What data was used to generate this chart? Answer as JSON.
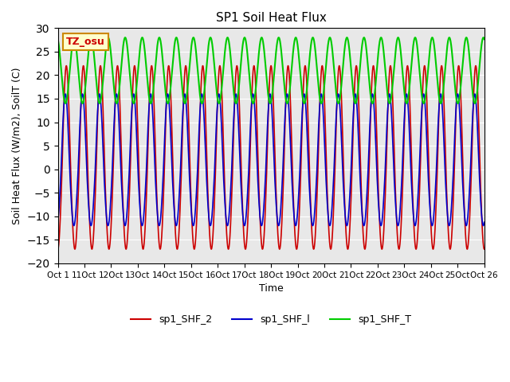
{
  "title": "SP1 Soil Heat Flux",
  "ylabel": "Soil Heat Flux (W/m2), SoilT (C)",
  "xlabel": "Time",
  "ylim": [
    -20,
    30
  ],
  "yticks": [
    -20,
    -15,
    -10,
    -5,
    0,
    5,
    10,
    15,
    20,
    25,
    30
  ],
  "xtick_labels": [
    "Oct 1",
    "11Oct",
    "12Oct",
    "13Oct",
    "14Oct",
    "15Oct",
    "16Oct",
    "17Oct",
    "18Oct",
    "19Oct",
    "20Oct",
    "21Oct",
    "22Oct",
    "23Oct",
    "24Oct",
    "25Oct",
    "Oct 26"
  ],
  "annotation_text": "TZ_osu",
  "annotation_bg": "#ffffcc",
  "annotation_border": "#cc8800",
  "bg_color": "#e8e8e8",
  "color_shf2": "#cc0000",
  "color_shf1": "#0000cc",
  "color_shfT": "#00cc00",
  "legend_labels": [
    "sp1_SHF_2",
    "sp1_SHF_l",
    "sp1_SHF_T"
  ],
  "num_days": 25
}
